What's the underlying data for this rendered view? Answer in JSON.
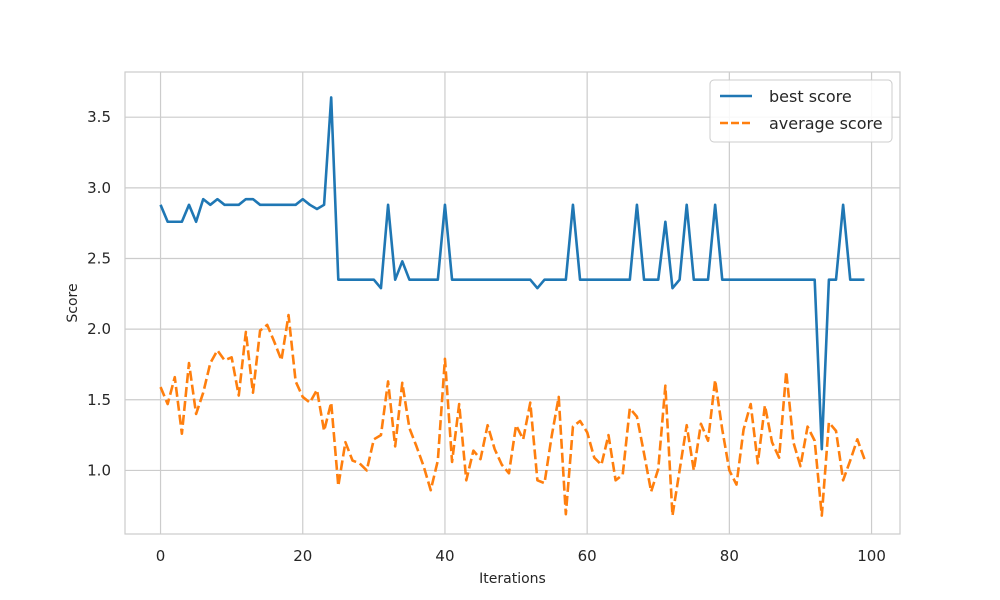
{
  "chart_data": {
    "type": "line",
    "title": "",
    "xlabel": "Iterations",
    "ylabel": "Score",
    "xlim": [
      -5,
      104
    ],
    "ylim": [
      0.55,
      3.82
    ],
    "xticks": [
      0,
      20,
      40,
      60,
      80,
      100
    ],
    "yticks": [
      1.0,
      1.5,
      2.0,
      2.5,
      3.0,
      3.5
    ],
    "xtick_labels": [
      "0",
      "20",
      "40",
      "60",
      "80",
      "100"
    ],
    "ytick_labels": [
      "1.0",
      "1.5",
      "2.0",
      "2.5",
      "3.0",
      "3.5"
    ],
    "grid": true,
    "legend_position": "top-right",
    "x": [
      0,
      1,
      2,
      3,
      4,
      5,
      6,
      7,
      8,
      9,
      10,
      11,
      12,
      13,
      14,
      15,
      16,
      17,
      18,
      19,
      20,
      21,
      22,
      23,
      24,
      25,
      26,
      27,
      28,
      29,
      30,
      31,
      32,
      33,
      34,
      35,
      36,
      37,
      38,
      39,
      40,
      41,
      42,
      43,
      44,
      45,
      46,
      47,
      48,
      49,
      50,
      51,
      52,
      53,
      54,
      55,
      56,
      57,
      58,
      59,
      60,
      61,
      62,
      63,
      64,
      65,
      66,
      67,
      68,
      69,
      70,
      71,
      72,
      73,
      74,
      75,
      76,
      77,
      78,
      79,
      80,
      81,
      82,
      83,
      84,
      85,
      86,
      87,
      88,
      89,
      90,
      91,
      92,
      93,
      94,
      95,
      96,
      97,
      98,
      99
    ],
    "series": [
      {
        "name": "best score",
        "color": "#1f77b4",
        "dash": "solid",
        "values": [
          2.88,
          2.76,
          2.76,
          2.76,
          2.88,
          2.76,
          2.92,
          2.88,
          2.92,
          2.88,
          2.88,
          2.88,
          2.92,
          2.92,
          2.88,
          2.88,
          2.88,
          2.88,
          2.88,
          2.88,
          2.92,
          2.88,
          2.85,
          2.88,
          3.64,
          2.35,
          2.35,
          2.35,
          2.35,
          2.35,
          2.35,
          2.29,
          2.88,
          2.35,
          2.48,
          2.35,
          2.35,
          2.35,
          2.35,
          2.35,
          2.88,
          2.35,
          2.35,
          2.35,
          2.35,
          2.35,
          2.35,
          2.35,
          2.35,
          2.35,
          2.35,
          2.35,
          2.35,
          2.29,
          2.35,
          2.35,
          2.35,
          2.35,
          2.88,
          2.35,
          2.35,
          2.35,
          2.35,
          2.35,
          2.35,
          2.35,
          2.35,
          2.88,
          2.35,
          2.35,
          2.35,
          2.76,
          2.29,
          2.35,
          2.88,
          2.35,
          2.35,
          2.35,
          2.88,
          2.35,
          2.35,
          2.35,
          2.35,
          2.35,
          2.35,
          2.35,
          2.35,
          2.35,
          2.35,
          2.35,
          2.35,
          2.35,
          2.35,
          1.15,
          2.35,
          2.35,
          2.88,
          2.35,
          2.35,
          2.35
        ]
      },
      {
        "name": "average score",
        "color": "#ff7f0e",
        "dash": "dashed",
        "values": [
          1.59,
          1.47,
          1.66,
          1.26,
          1.76,
          1.4,
          1.55,
          1.76,
          1.85,
          1.78,
          1.8,
          1.53,
          1.98,
          1.55,
          1.99,
          2.03,
          1.91,
          1.78,
          2.1,
          1.63,
          1.52,
          1.48,
          1.57,
          1.28,
          1.48,
          0.89,
          1.2,
          1.07,
          1.05,
          1.0,
          1.22,
          1.25,
          1.63,
          1.17,
          1.62,
          1.3,
          1.17,
          1.03,
          0.86,
          1.07,
          1.79,
          1.06,
          1.47,
          0.93,
          1.14,
          1.08,
          1.32,
          1.15,
          1.04,
          0.98,
          1.32,
          1.22,
          1.48,
          0.93,
          0.91,
          1.24,
          1.52,
          0.69,
          1.31,
          1.35,
          1.27,
          1.09,
          1.04,
          1.25,
          0.93,
          0.97,
          1.44,
          1.38,
          1.12,
          0.85,
          1.01,
          1.6,
          0.68,
          1.0,
          1.32,
          1.0,
          1.33,
          1.21,
          1.64,
          1.29,
          1.0,
          0.9,
          1.29,
          1.47,
          1.05,
          1.46,
          1.2,
          1.09,
          1.7,
          1.2,
          1.03,
          1.31,
          1.21,
          0.68,
          1.34,
          1.28,
          0.93,
          1.07,
          1.22,
          1.08
        ]
      }
    ]
  }
}
